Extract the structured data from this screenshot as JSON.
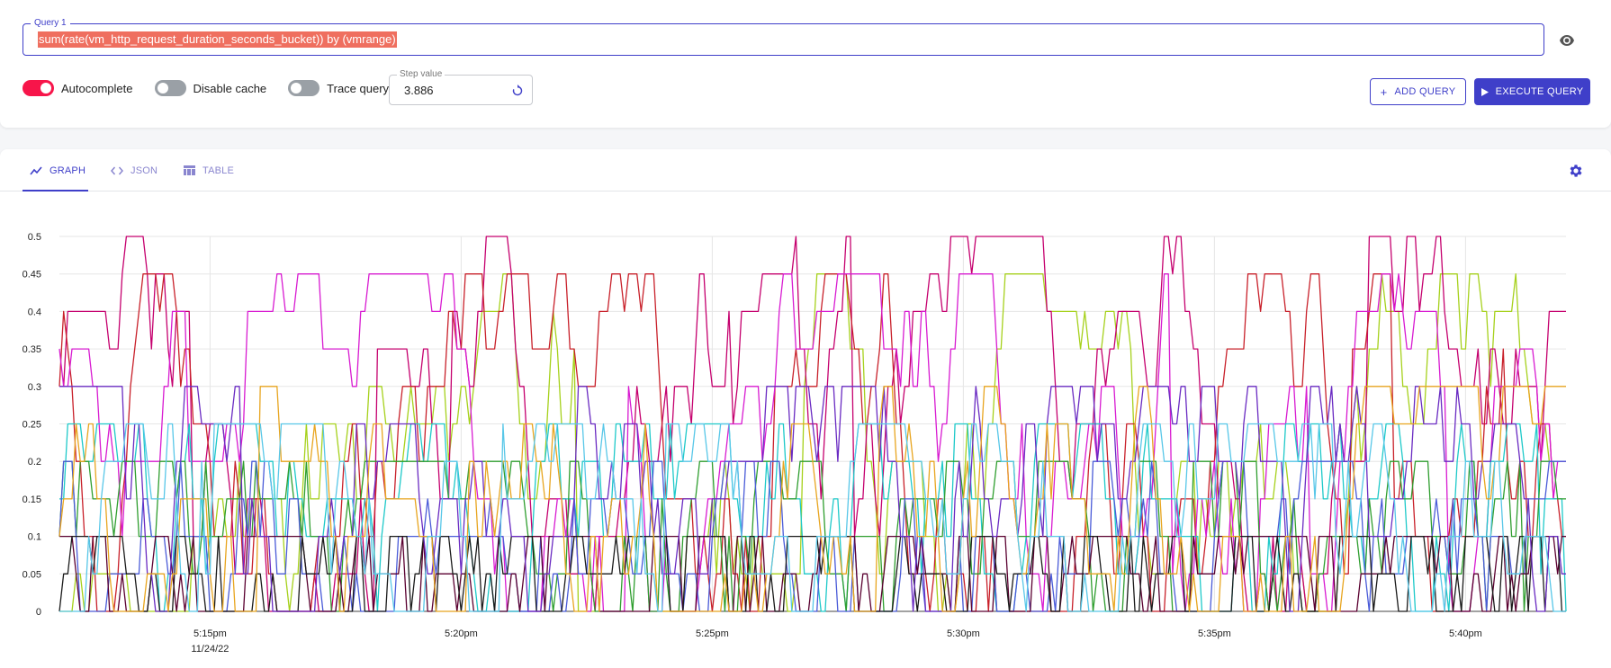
{
  "query": {
    "label": "Query 1",
    "value": "sum(rate(vm_http_request_duration_seconds_bucket)) by (vmrange)"
  },
  "toggles": {
    "autocomplete": {
      "label": "Autocomplete",
      "on": true
    },
    "disable_cache": {
      "label": "Disable cache",
      "on": false
    },
    "trace_query": {
      "label": "Trace query",
      "on": false
    }
  },
  "step": {
    "label": "Step value",
    "value": "3.886"
  },
  "buttons": {
    "add_query": "ADD QUERY",
    "execute_query": "EXECUTE QUERY"
  },
  "tabs": [
    {
      "label": "GRAPH",
      "icon": "chart-line-icon",
      "active": true
    },
    {
      "label": "JSON",
      "icon": "code-icon",
      "active": false
    },
    {
      "label": "TABLE",
      "icon": "table-icon",
      "active": false
    }
  ],
  "colors": {
    "primary": "#3f3fc9",
    "toggle_on": "#f7154a",
    "query_highlight": "#ef6f5f",
    "series": [
      "#a6d11c",
      "#c5006e",
      "#c8202a",
      "#d81bd1",
      "#1ec9c9",
      "#2f9e2f",
      "#4a5bd8",
      "#5a0030",
      "#1a1a1a",
      "#6a2bc2",
      "#e8a51f",
      "#58c7e8"
    ]
  },
  "chart_data": {
    "type": "line",
    "x_range": [
      "5:12pm",
      "5:42pm"
    ],
    "x_ticks": [
      {
        "label": "5:15pm",
        "sublabel": "11/24/22",
        "minute": 15
      },
      {
        "label": "5:20pm",
        "sublabel": "",
        "minute": 20
      },
      {
        "label": "5:25pm",
        "sublabel": "",
        "minute": 25
      },
      {
        "label": "5:30pm",
        "sublabel": "",
        "minute": 30
      },
      {
        "label": "5:35pm",
        "sublabel": "",
        "minute": 35
      },
      {
        "label": "5:40pm",
        "sublabel": "",
        "minute": 40
      }
    ],
    "y_ticks": [
      "0",
      "0.05",
      "0.1",
      "0.15",
      "0.2",
      "0.25",
      "0.3",
      "0.35",
      "0.4",
      "0.45",
      "0.5"
    ],
    "ylim": [
      0,
      0.5
    ],
    "grid": true,
    "series_count": 12,
    "series_peaks": [
      0.45,
      0.5,
      0.45,
      0.45,
      0.25,
      0.2,
      0.2,
      0.1,
      0.1,
      0.3,
      0.3,
      0.25
    ]
  }
}
